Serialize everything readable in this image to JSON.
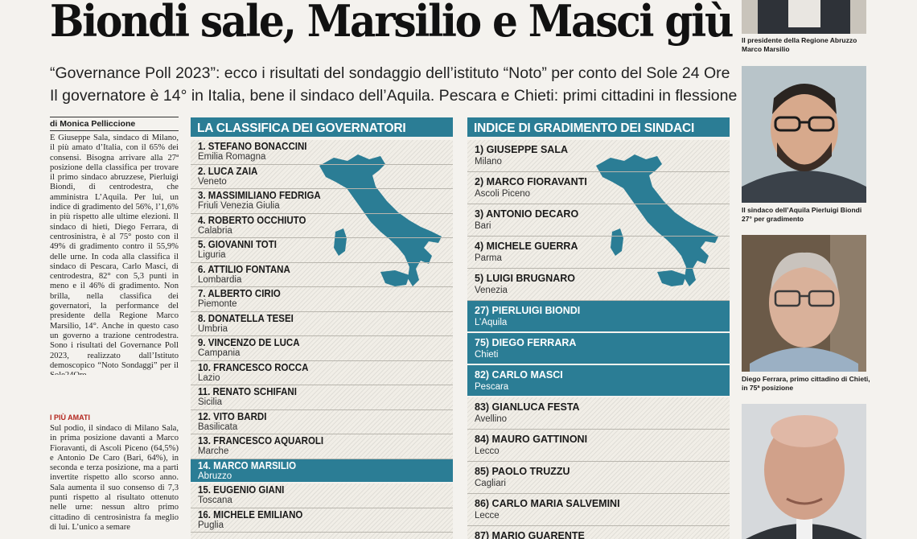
{
  "headline": "Biondi sale, Marsilio e Masci giù",
  "deck": [
    "“Governance Poll 2023”: ecco i risultati del sondaggio dell’istituto “Noto” per conto del Sole 24 Ore",
    "Il governatore è 14° in Italia, bene il sindaco dell’Aquila. Pescara e Chieti: primi cittadini in flessione"
  ],
  "byline": "di Monica Pelliccione",
  "body": "È Giuseppe Sala, sindaco di Milano, il più amato d’Italia, con il 65% dei consensi. Bisogna arrivare alla 27ª posizione della classifica per trovare il primo sindaco abruzzese, Pierluigi Biondi, di centrodestra, che amministra L’Aquila. Per lui, un indice di gradimento del 56%, l’1,6% in più rispetto alle ultime elezioni. Il sindaco di hieti, Diego Ferrara, di centrosinistra, è al 75° posto con il 49% di gradimento contro il 55,9% delle urne. In coda alla classifica il sindaco di Pescara, Carlo Masci, di centrodestra, 82° con 5,3 punti in meno e il 46% di gradimento. Non brilla, nella classifica dei governatori, la performance del presidente della Regione Marco Marsilio, 14°. Anche in questo caso un governo a trazione centrodestra. Sono i risultati del Governance Poll 2023, realizzato dall’Istituto demoscopico “Noto Sondaggi” per il Sole24Ore.",
  "section_head": "I PIÙ AMATI",
  "body2": "Sul podio, il sindaco di Milano Sala, in prima posizione davanti a Marco Fioravanti, di Ascoli Piceno (64,5%) e Antonio De Caro (Bari, 64%), in seconda e terza posizione, ma a parti invertite rispetto allo scorso anno. Sala aumenta il suo consenso di 7,3 punti rispetto al risultato ottenuto nelle urne: nessun altro primo cittadino di centrosinistra fa meglio di lui. L’unico a semare",
  "governors": {
    "title": "LA CLASSIFICA DEI GOVERNATORI",
    "rows": [
      {
        "name": "1. STEFANO BONACCINI",
        "place": "Emilia Romagna",
        "highlight": false
      },
      {
        "name": "2. LUCA ZAIA",
        "place": "Veneto",
        "highlight": false
      },
      {
        "name": "3. MASSIMILIANO FEDRIGA",
        "place": "Friuli Venezia Giulia",
        "highlight": false
      },
      {
        "name": "4. ROBERTO OCCHIUTO",
        "place": "Calabria",
        "highlight": false
      },
      {
        "name": "5. GIOVANNI TOTI",
        "place": "Liguria",
        "highlight": false
      },
      {
        "name": "6. ATTILIO FONTANA",
        "place": "Lombardia",
        "highlight": false
      },
      {
        "name": "7. ALBERTO CIRIO",
        "place": "Piemonte",
        "highlight": false
      },
      {
        "name": "8. DONATELLA TESEI",
        "place": "Umbria",
        "highlight": false
      },
      {
        "name": "9. VINCENZO DE LUCA",
        "place": "Campania",
        "highlight": false
      },
      {
        "name": "10. FRANCESCO ROCCA",
        "place": "Lazio",
        "highlight": false
      },
      {
        "name": "11. RENATO SCHIFANI",
        "place": "Sicilia",
        "highlight": false
      },
      {
        "name": "12. VITO BARDI",
        "place": "Basilicata",
        "highlight": false
      },
      {
        "name": "13. FRANCESCO AQUAROLI",
        "place": "Marche",
        "highlight": false
      },
      {
        "name": "14. MARCO MARSILIO",
        "place": "Abruzzo",
        "highlight": true
      },
      {
        "name": "15. EUGENIO GIANI",
        "place": "Toscana",
        "highlight": false
      },
      {
        "name": "16. MICHELE EMILIANO",
        "place": "Puglia",
        "highlight": false
      }
    ]
  },
  "mayors": {
    "title": "INDICE DI GRADIMENTO DEI SINDACI",
    "rows": [
      {
        "name": "1) GIUSEPPE SALA",
        "place": "Milano",
        "highlight": false
      },
      {
        "name": "2) MARCO FIORAVANTI",
        "place": "Ascoli Piceno",
        "highlight": false
      },
      {
        "name": "3) ANTONIO DECARO",
        "place": "Bari",
        "highlight": false
      },
      {
        "name": "4) MICHELE GUERRA",
        "place": "Parma",
        "highlight": false
      },
      {
        "name": "5) LUIGI BRUGNARO",
        "place": "Venezia",
        "highlight": false
      },
      {
        "name": "27) PIERLUIGI BIONDI",
        "place": "L’Aquila",
        "highlight": true
      },
      {
        "name": "75) DIEGO FERRARA",
        "place": "Chieti",
        "highlight": true
      },
      {
        "name": "82) CARLO MASCI",
        "place": "Pescara",
        "highlight": true
      },
      {
        "name": "83) GIANLUCA FESTA",
        "place": "Avellino",
        "highlight": false
      },
      {
        "name": "84) MAURO GATTINONI",
        "place": "Lecco",
        "highlight": false
      },
      {
        "name": "85) PAOLO TRUZZU",
        "place": "Cagliari",
        "highlight": false
      },
      {
        "name": "86) CARLO MARIA SALVEMINI",
        "place": "Lecce",
        "highlight": false
      },
      {
        "name": "87) MARIO GUARENTE",
        "place": "",
        "highlight": false
      }
    ]
  },
  "captions": [
    "Il presidente della Regione Abruzzo Marco Marsilio",
    "Il sindaco dell’Aquila Pierluigi Biondi 27° per gradimento",
    "Diego Ferrara, primo cittadino di Chieti, in 75ª posizione"
  ],
  "colors": {
    "accent": "#2b7d95",
    "map": "#2b7d95"
  }
}
